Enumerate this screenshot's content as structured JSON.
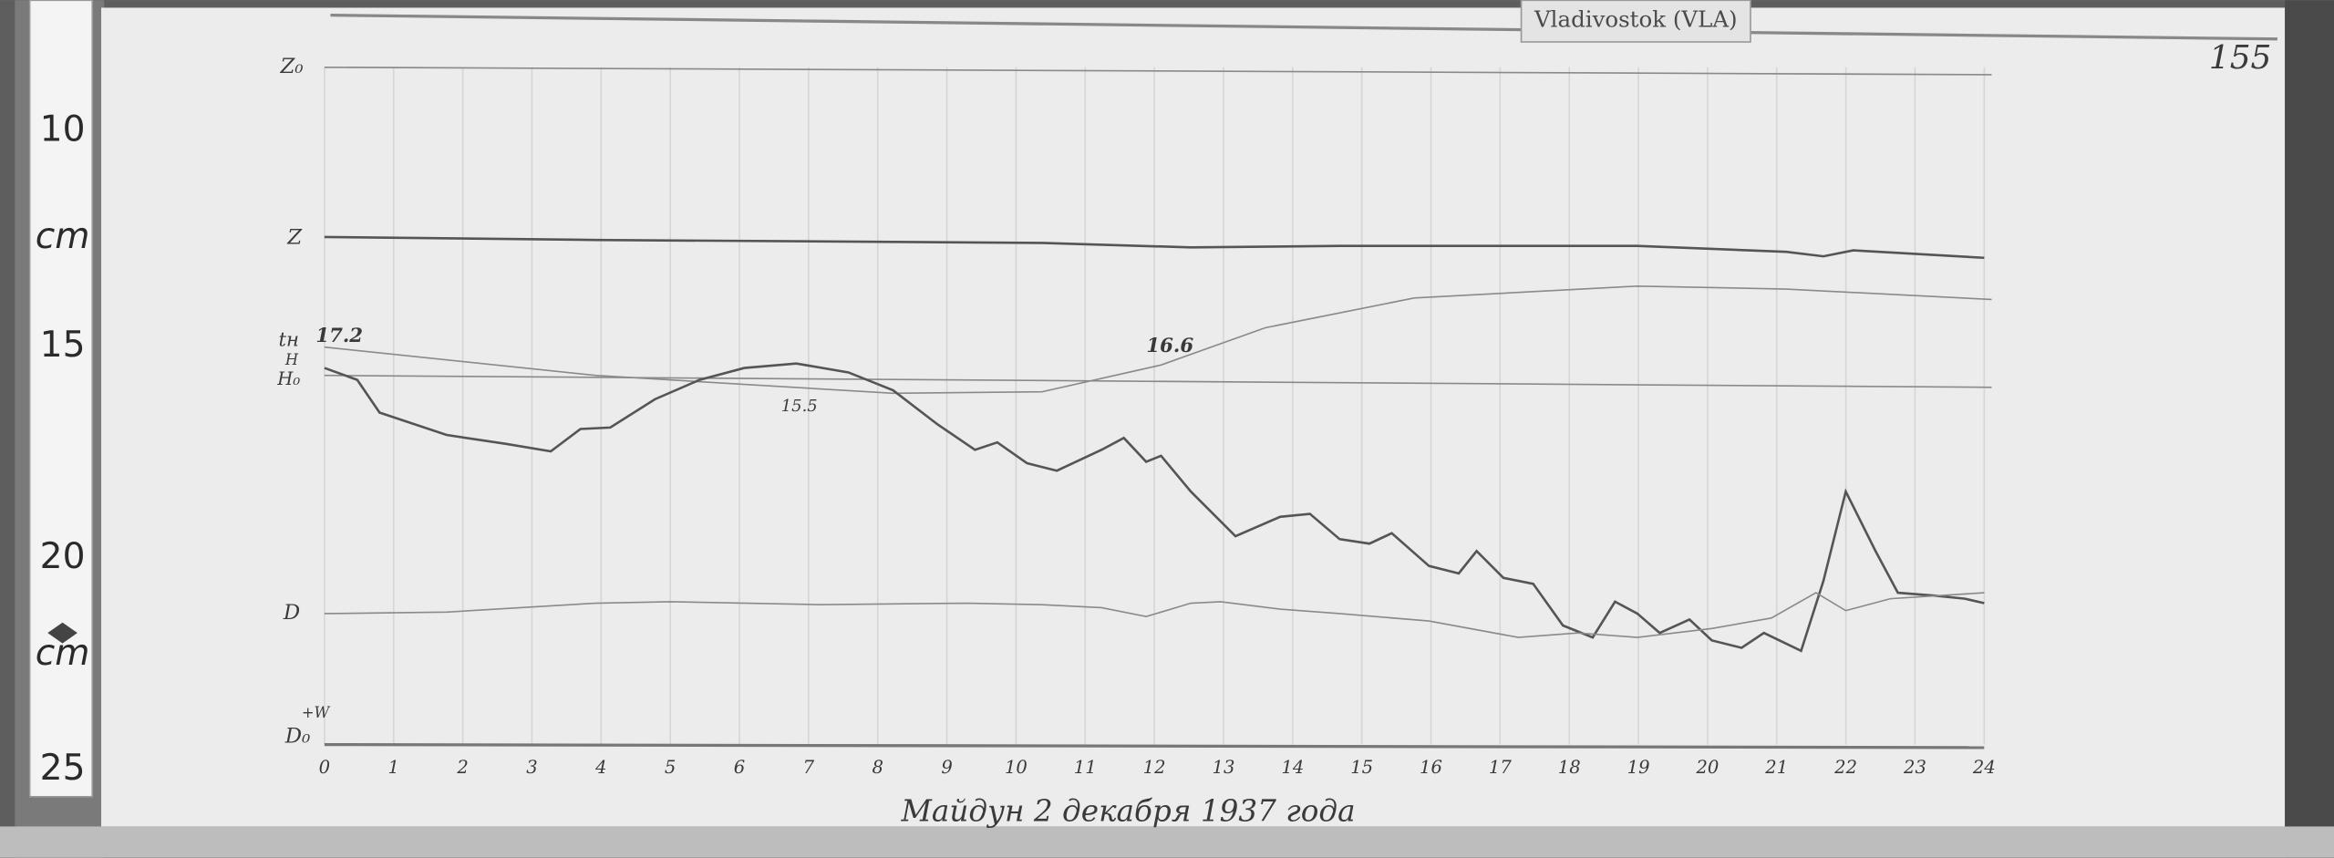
{
  "header": {
    "station": "Vladivostok (VLA)",
    "sheet_number": "155"
  },
  "ruler": {
    "labels": [
      "10",
      "cm",
      "15",
      "20",
      "cm",
      "25"
    ]
  },
  "traces": {
    "labels": [
      "Z₀",
      "Z",
      "tн",
      "H",
      "H₀",
      "D",
      "D₀",
      "+W"
    ]
  },
  "annotations": [
    "17.2",
    "16.6",
    "15.5"
  ],
  "time_axis": {
    "labels": [
      "0",
      "1",
      "2",
      "3",
      "4",
      "5",
      "6",
      "7",
      "8",
      "9",
      "10",
      "11",
      "12",
      "13",
      "14",
      "15",
      "16",
      "17",
      "18",
      "19",
      "20",
      "21",
      "22",
      "23",
      "24"
    ]
  },
  "caption": "Майдун 2 декабря 1937 года"
}
